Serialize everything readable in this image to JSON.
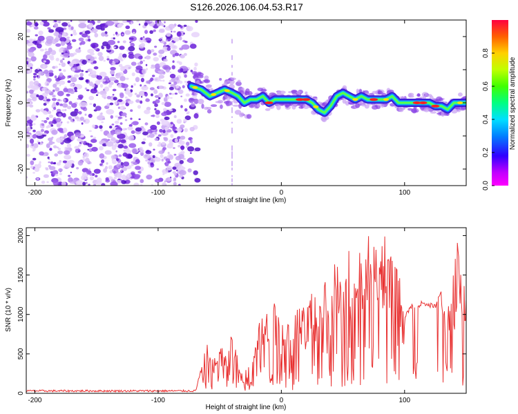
{
  "title": "S126.2026.106.04.53.R17",
  "colors": {
    "snr_line": "#e83030",
    "track_core": "#ff2020",
    "noise": "#7a2ee0",
    "axis": "#000000",
    "background": "#ffffff"
  },
  "chart_data": [
    {
      "type": "heatmap",
      "name": "spectrogram",
      "xlabel": "Height of straight line (km)",
      "ylabel": "Frequency (Hz)",
      "xlim": [
        -207,
        150
      ],
      "ylim": [
        -25,
        25
      ],
      "xticks": [
        -200,
        -100,
        0,
        100
      ],
      "yticks": [
        -20,
        -10,
        0,
        10,
        20
      ],
      "colorbar": {
        "label": "Normalized spectral amplitude",
        "range": [
          0,
          1
        ],
        "ticks": [
          "0.0",
          "0.2",
          "0.4",
          "0.6",
          "0.8"
        ]
      },
      "noise_region_km": [
        -207,
        -73
      ],
      "signal_track": {
        "x": [
          -73,
          -65,
          -58,
          -52,
          -46,
          -40,
          -35,
          -30,
          -25,
          -20,
          -15,
          -10,
          -5,
          0,
          5,
          10,
          15,
          20,
          25,
          30,
          35,
          40,
          45,
          50,
          55,
          60,
          65,
          70,
          75,
          80,
          85,
          90,
          95,
          100,
          105,
          110,
          115,
          120,
          125,
          130,
          135,
          140,
          145,
          150
        ],
        "freq_hz": [
          5,
          4,
          2,
          3,
          4,
          3,
          2,
          0,
          1,
          1,
          2,
          0,
          1,
          1,
          1,
          1,
          1,
          1,
          0,
          -2,
          -3,
          -1,
          2,
          3,
          2,
          1,
          2,
          1,
          1,
          1,
          1,
          2,
          0,
          0,
          0,
          0,
          0,
          0,
          -1,
          -1,
          -2,
          0,
          0,
          0
        ]
      }
    },
    {
      "type": "line",
      "name": "snr",
      "xlabel": "Height of straight line (km)",
      "ylabel": "SNR (10 * v/v)",
      "xlim": [
        -207,
        150
      ],
      "ylim": [
        0,
        2100
      ],
      "xticks": [
        -200,
        -100,
        0,
        100
      ],
      "yticks": [
        0,
        500,
        1000,
        1500,
        2000
      ],
      "series": [
        {
          "name": "SNR",
          "x": [
            -207,
            -150,
            -100,
            -70,
            -65,
            -60,
            -55,
            -50,
            -45,
            -40,
            -35,
            -30,
            -25,
            -20,
            -15,
            -10,
            -5,
            0,
            5,
            10,
            15,
            20,
            25,
            30,
            35,
            40,
            45,
            50,
            55,
            60,
            65,
            70,
            75,
            80,
            85,
            90,
            95,
            100,
            105,
            110,
            115,
            120,
            125,
            130,
            135,
            140,
            145,
            150
          ],
          "y": [
            30,
            30,
            30,
            30,
            300,
            550,
            350,
            600,
            450,
            700,
            350,
            200,
            450,
            700,
            1000,
            850,
            1050,
            900,
            950,
            750,
            1150,
            1000,
            1300,
            1050,
            1400,
            1100,
            1600,
            1200,
            1800,
            1300,
            1850,
            1650,
            1900,
            1600,
            1700,
            1650,
            1550,
            950,
            1100,
            1100,
            1150,
            1120,
            1100,
            1300,
            900,
            1400,
            1800,
            1500
          ]
        }
      ]
    }
  ]
}
